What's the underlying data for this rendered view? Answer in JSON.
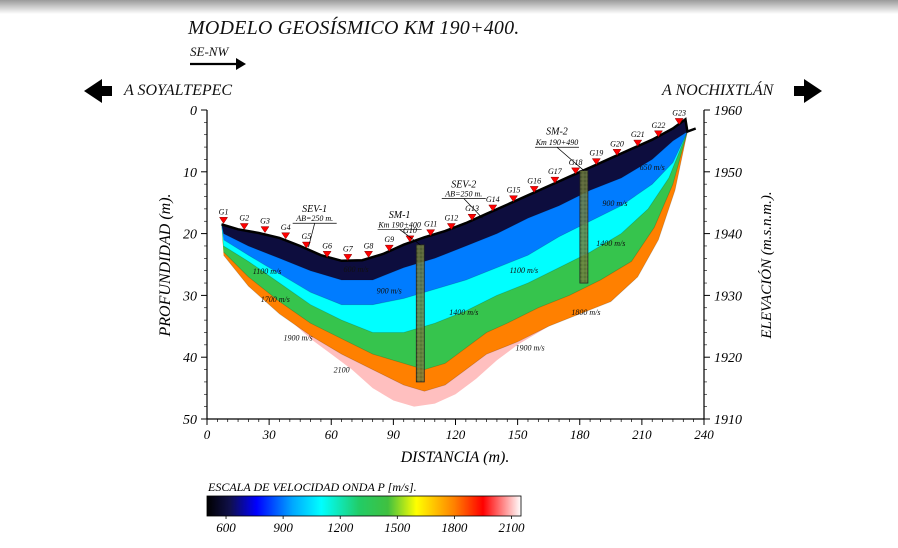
{
  "title": "MODELO GEOSÍSMICO KM 190+400.",
  "direction_label": "SE-NW",
  "left_town": "A SOYALTEPEC",
  "right_town": "A NOCHIXTLÁN",
  "icons": [
    "arrow-right-icon",
    "arrow-left-icon",
    "arrow-right-icon"
  ],
  "chart_data": {
    "type": "heatmap",
    "xlabel": "DISTANCIA (m).",
    "ylabel": "PROFUNDIDAD (m).",
    "y2label": "ELEVACIÓN (m.s.n.m.).",
    "xlim": [
      0,
      240
    ],
    "ylim": [
      0,
      50
    ],
    "y2lim": [
      1910,
      1960
    ],
    "x_ticks": [
      "0",
      "30",
      "60",
      "90",
      "120",
      "150",
      "180",
      "210",
      "240"
    ],
    "y_ticks": [
      "0",
      "10",
      "20",
      "30",
      "40",
      "50"
    ],
    "y2_ticks": [
      "1960",
      "1950",
      "1940",
      "1930",
      "1920",
      "1910"
    ],
    "geophones": [
      {
        "label": "G1",
        "x": 8,
        "depth": 18.5
      },
      {
        "label": "G2",
        "x": 18,
        "depth": 19.5
      },
      {
        "label": "G3",
        "x": 28,
        "depth": 20
      },
      {
        "label": "G4",
        "x": 38,
        "depth": 21
      },
      {
        "label": "G5",
        "x": 48,
        "depth": 22.5
      },
      {
        "label": "G6",
        "x": 58,
        "depth": 24
      },
      {
        "label": "G7",
        "x": 68,
        "depth": 24.5
      },
      {
        "label": "G8",
        "x": 78,
        "depth": 24
      },
      {
        "label": "G9",
        "x": 88,
        "depth": 23
      },
      {
        "label": "G10",
        "x": 98,
        "depth": 21.5
      },
      {
        "label": "G11",
        "x": 108,
        "depth": 20.5
      },
      {
        "label": "G12",
        "x": 118,
        "depth": 19.5
      },
      {
        "label": "G13",
        "x": 128,
        "depth": 18
      },
      {
        "label": "G14",
        "x": 138,
        "depth": 16.5
      },
      {
        "label": "G15",
        "x": 148,
        "depth": 15
      },
      {
        "label": "G16",
        "x": 158,
        "depth": 13.5
      },
      {
        "label": "G17",
        "x": 168,
        "depth": 12
      },
      {
        "label": "G18",
        "x": 178,
        "depth": 10.5
      },
      {
        "label": "G19",
        "x": 188,
        "depth": 9
      },
      {
        "label": "G20",
        "x": 198,
        "depth": 7.5
      },
      {
        "label": "G21",
        "x": 208,
        "depth": 6
      },
      {
        "label": "G22",
        "x": 218,
        "depth": 4.5
      },
      {
        "label": "G23",
        "x": 228,
        "depth": 2.5
      }
    ],
    "surface": [
      [
        7,
        18.5
      ],
      [
        15,
        19.3
      ],
      [
        25,
        19.9
      ],
      [
        35,
        20.7
      ],
      [
        45,
        22
      ],
      [
        55,
        23.5
      ],
      [
        65,
        24.4
      ],
      [
        75,
        24.3
      ],
      [
        85,
        23.3
      ],
      [
        95,
        21.8
      ],
      [
        105,
        20.6
      ],
      [
        115,
        19.6
      ],
      [
        125,
        18.3
      ],
      [
        135,
        16.8
      ],
      [
        145,
        15.3
      ],
      [
        155,
        13.8
      ],
      [
        165,
        12.3
      ],
      [
        175,
        10.8
      ],
      [
        185,
        9.3
      ],
      [
        195,
        7.8
      ],
      [
        205,
        6.3
      ],
      [
        215,
        4.8
      ],
      [
        225,
        3
      ],
      [
        231,
        1.5
      ],
      [
        232,
        3.5
      ],
      [
        236,
        3
      ]
    ],
    "bottom": [
      [
        8,
        21
      ],
      [
        20,
        26
      ],
      [
        30,
        31
      ],
      [
        40,
        34
      ],
      [
        50,
        37
      ],
      [
        60,
        39.5
      ],
      [
        70,
        42
      ],
      [
        80,
        45
      ],
      [
        90,
        47
      ],
      [
        100,
        48
      ],
      [
        110,
        47.5
      ],
      [
        120,
        46
      ],
      [
        130,
        43.5
      ],
      [
        140,
        40.5
      ],
      [
        150,
        38
      ],
      [
        160,
        36
      ],
      [
        170,
        34
      ],
      [
        180,
        32.5
      ],
      [
        190,
        31
      ],
      [
        200,
        28.5
      ],
      [
        210,
        25
      ],
      [
        218,
        20
      ],
      [
        225,
        13
      ],
      [
        229,
        8
      ],
      [
        232,
        3.5
      ]
    ],
    "velocity_contours": [
      {
        "velocity": 600,
        "points": [
          [
            8,
            20
          ],
          [
            20,
            22
          ],
          [
            35,
            24
          ],
          [
            50,
            26
          ],
          [
            65,
            27.5
          ],
          [
            80,
            27.5
          ],
          [
            95,
            25.5
          ],
          [
            110,
            24
          ],
          [
            125,
            22
          ],
          [
            140,
            20
          ],
          [
            155,
            17.5
          ],
          [
            170,
            15.5
          ],
          [
            185,
            13
          ],
          [
            200,
            11
          ],
          [
            215,
            8
          ],
          [
            225,
            5
          ],
          [
            232,
            3.5
          ]
        ]
      },
      {
        "velocity": 900,
        "points": [
          [
            8,
            21
          ],
          [
            20,
            23.5
          ],
          [
            35,
            26.5
          ],
          [
            50,
            29.5
          ],
          [
            65,
            31.5
          ],
          [
            80,
            31.5
          ],
          [
            95,
            30.5
          ],
          [
            110,
            29
          ],
          [
            125,
            27.5
          ],
          [
            140,
            25.5
          ],
          [
            155,
            23.5
          ],
          [
            170,
            20.5
          ],
          [
            185,
            18
          ],
          [
            200,
            15.5
          ],
          [
            215,
            12
          ],
          [
            225,
            8.5
          ],
          [
            232,
            3.5
          ]
        ]
      },
      {
        "velocity": 1100,
        "points": [
          [
            8,
            22
          ],
          [
            20,
            24.5
          ],
          [
            35,
            28
          ],
          [
            50,
            31.5
          ],
          [
            65,
            34
          ],
          [
            80,
            36
          ],
          [
            95,
            36
          ],
          [
            110,
            34.5
          ],
          [
            125,
            32.5
          ],
          [
            140,
            30
          ],
          [
            155,
            28
          ],
          [
            170,
            25.5
          ],
          [
            185,
            23
          ],
          [
            200,
            20
          ],
          [
            213,
            16
          ],
          [
            223,
            11
          ],
          [
            232,
            3.5
          ]
        ]
      },
      {
        "velocity": 1400,
        "points": [
          [
            8,
            23
          ],
          [
            20,
            27
          ],
          [
            35,
            31
          ],
          [
            50,
            34.5
          ],
          [
            65,
            37
          ],
          [
            80,
            39.5
          ],
          [
            95,
            41
          ],
          [
            105,
            42
          ],
          [
            115,
            41
          ],
          [
            125,
            38.5
          ],
          [
            135,
            36
          ],
          [
            145,
            34.5
          ],
          [
            160,
            32
          ],
          [
            175,
            30
          ],
          [
            190,
            27.5
          ],
          [
            205,
            24.5
          ],
          [
            216,
            19
          ],
          [
            225,
            12
          ],
          [
            232,
            3.5
          ]
        ]
      },
      {
        "velocity": 1800,
        "points": [
          [
            8,
            23.5
          ],
          [
            20,
            28.5
          ],
          [
            35,
            33
          ],
          [
            50,
            36.5
          ],
          [
            65,
            39.5
          ],
          [
            80,
            42
          ],
          [
            95,
            44.5
          ],
          [
            105,
            45.5
          ],
          [
            115,
            44.5
          ],
          [
            125,
            42
          ],
          [
            135,
            39.5
          ],
          [
            150,
            37.5
          ],
          [
            165,
            35
          ],
          [
            180,
            33
          ],
          [
            195,
            31
          ],
          [
            208,
            27
          ],
          [
            218,
            21
          ],
          [
            226,
            13
          ],
          [
            232,
            3.5
          ]
        ]
      }
    ],
    "velocity_labels": [
      {
        "text": "650 m/s",
        "x": 215,
        "depth": 9.7
      },
      {
        "text": "600 m/s",
        "x": 72,
        "depth": 26.2
      },
      {
        "text": "900 m/s",
        "x": 88,
        "depth": 29.7
      },
      {
        "text": "900 m/s",
        "x": 197,
        "depth": 15.5
      },
      {
        "text": "1100 m/s",
        "x": 29,
        "depth": 26.5
      },
      {
        "text": "1100 m/s",
        "x": 153,
        "depth": 26.4
      },
      {
        "text": "1400 m/s",
        "x": 124,
        "depth": 33.2
      },
      {
        "text": "1400 m/s",
        "x": 195,
        "depth": 22
      },
      {
        "text": "1700 m/s",
        "x": 33,
        "depth": 31.1
      },
      {
        "text": "1800 m/s",
        "x": 183,
        "depth": 33.2
      },
      {
        "text": "1900 m/s",
        "x": 44,
        "depth": 37.3
      },
      {
        "text": "1900 m/s",
        "x": 156,
        "depth": 38.9
      },
      {
        "text": "2100",
        "x": 65,
        "depth": 42.5
      }
    ],
    "soundings": [
      {
        "name": "SEV-1",
        "spec": "AB=250 m.",
        "x": 52,
        "label_depth": 16.5,
        "spec_depth": 18,
        "pointer": [
          49,
          22.2
        ]
      },
      {
        "name": "SM-1",
        "spec": "Km 190+400",
        "x": 93,
        "label_depth": 17.5,
        "spec_depth": 19,
        "pointer": [
          103,
          21.8
        ]
      },
      {
        "name": "SEV-2",
        "spec": "AB=250 m.",
        "x": 124,
        "label_depth": 12.5,
        "spec_depth": 14,
        "pointer": [
          133,
          17.5
        ]
      },
      {
        "name": "SM-2",
        "spec": "Km 190+490",
        "x": 169,
        "label_depth": 4,
        "spec_depth": 5.7,
        "pointer": [
          182,
          9.8
        ]
      }
    ],
    "boreholes": [
      {
        "name": "SM-1",
        "x": 103,
        "top": 21.8,
        "bottom": 44
      },
      {
        "name": "SM-2",
        "x": 182,
        "top": 9.8,
        "bottom": 28
      }
    ],
    "colorbar": {
      "label": "ESCALA DE VELOCIDAD ONDA P [m/s].",
      "range": [
        500,
        2150
      ],
      "ticks": [
        "600",
        "900",
        "1200",
        "1500",
        "1800",
        "2100"
      ],
      "stops": [
        {
          "v": 500,
          "color": "#000000"
        },
        {
          "v": 620,
          "color": "#10104a"
        },
        {
          "v": 760,
          "color": "#0000ff"
        },
        {
          "v": 950,
          "color": "#00a8ff"
        },
        {
          "v": 1100,
          "color": "#00ffff"
        },
        {
          "v": 1300,
          "color": "#22cc66"
        },
        {
          "v": 1450,
          "color": "#40c040"
        },
        {
          "v": 1600,
          "color": "#ffff00"
        },
        {
          "v": 1800,
          "color": "#ff8000"
        },
        {
          "v": 1950,
          "color": "#ff0000"
        },
        {
          "v": 2150,
          "color": "#ffffff"
        }
      ]
    },
    "grid": false
  }
}
